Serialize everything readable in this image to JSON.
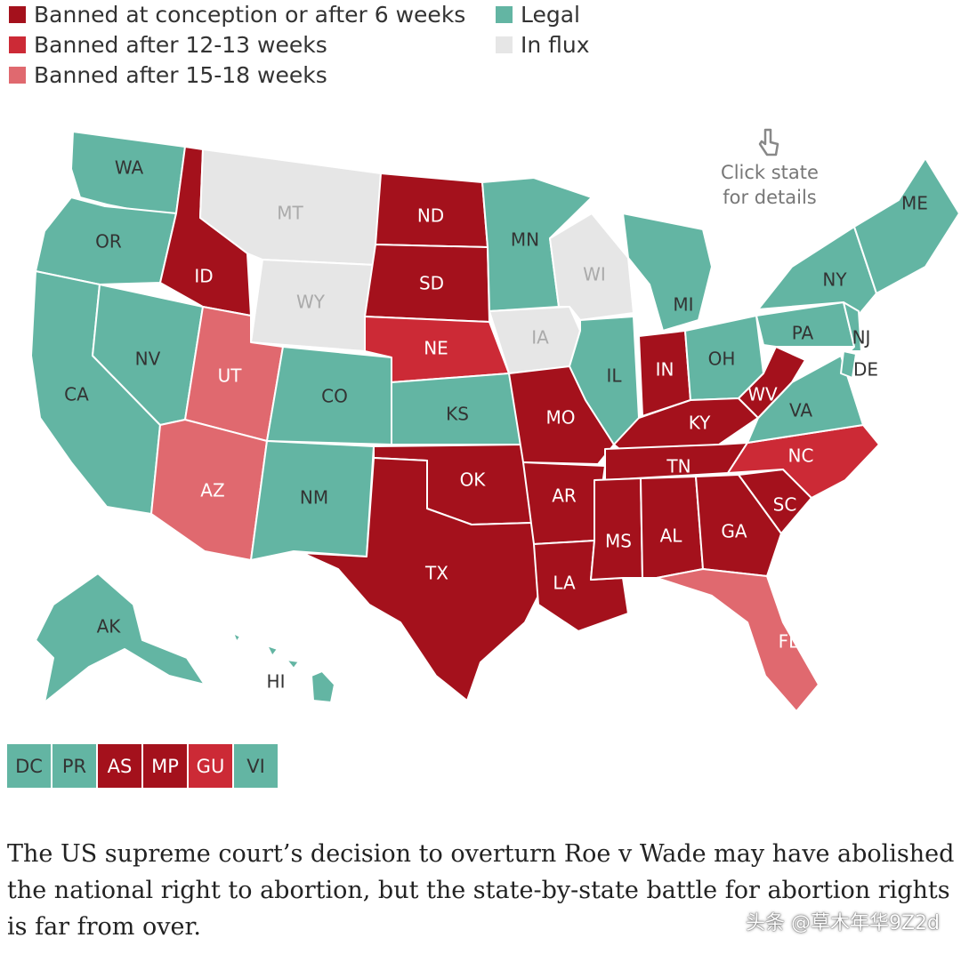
{
  "legend": [
    {
      "label": "Banned at conception or after 6 weeks",
      "color": "#a4111c"
    },
    {
      "label": "Banned after 12-13 weeks",
      "color": "#cc2a36"
    },
    {
      "label": "Banned after 15-18 weeks",
      "color": "#e0696f"
    },
    {
      "label": "Legal",
      "color": "#63b5a3"
    },
    {
      "label": "In flux",
      "color": "#e6e6e6"
    }
  ],
  "hint": {
    "line1": "Click state",
    "line2": "for details",
    "icon": "pointer-hand-icon"
  },
  "states": [
    {
      "code": "WA",
      "status": "legal"
    },
    {
      "code": "OR",
      "status": "legal"
    },
    {
      "code": "CA",
      "status": "legal"
    },
    {
      "code": "NV",
      "status": "legal"
    },
    {
      "code": "ID",
      "status": "banned6"
    },
    {
      "code": "MT",
      "status": "flux"
    },
    {
      "code": "WY",
      "status": "flux"
    },
    {
      "code": "UT",
      "status": "banned15"
    },
    {
      "code": "AZ",
      "status": "banned15"
    },
    {
      "code": "CO",
      "status": "legal"
    },
    {
      "code": "NM",
      "status": "legal"
    },
    {
      "code": "ND",
      "status": "banned6"
    },
    {
      "code": "SD",
      "status": "banned6"
    },
    {
      "code": "NE",
      "status": "banned12"
    },
    {
      "code": "KS",
      "status": "legal"
    },
    {
      "code": "OK",
      "status": "banned6"
    },
    {
      "code": "TX",
      "status": "banned6"
    },
    {
      "code": "MN",
      "status": "legal"
    },
    {
      "code": "IA",
      "status": "flux"
    },
    {
      "code": "MO",
      "status": "banned6"
    },
    {
      "code": "AR",
      "status": "banned6"
    },
    {
      "code": "LA",
      "status": "banned6"
    },
    {
      "code": "WI",
      "status": "flux"
    },
    {
      "code": "IL",
      "status": "legal"
    },
    {
      "code": "MI",
      "status": "legal"
    },
    {
      "code": "IN",
      "status": "banned6"
    },
    {
      "code": "OH",
      "status": "legal"
    },
    {
      "code": "KY",
      "status": "banned6"
    },
    {
      "code": "TN",
      "status": "banned6"
    },
    {
      "code": "MS",
      "status": "banned6"
    },
    {
      "code": "AL",
      "status": "banned6"
    },
    {
      "code": "GA",
      "status": "banned6"
    },
    {
      "code": "FL",
      "status": "banned15"
    },
    {
      "code": "SC",
      "status": "banned6"
    },
    {
      "code": "NC",
      "status": "banned12"
    },
    {
      "code": "VA",
      "status": "legal"
    },
    {
      "code": "WV",
      "status": "banned6"
    },
    {
      "code": "PA",
      "status": "legal"
    },
    {
      "code": "NY",
      "status": "legal"
    },
    {
      "code": "NJ",
      "status": "legal"
    },
    {
      "code": "DE",
      "status": "legal"
    },
    {
      "code": "ME",
      "status": "legal"
    },
    {
      "code": "AK",
      "status": "legal"
    },
    {
      "code": "HI",
      "status": "legal"
    }
  ],
  "territories": [
    {
      "code": "DC",
      "status": "legal"
    },
    {
      "code": "PR",
      "status": "legal"
    },
    {
      "code": "AS",
      "status": "banned6"
    },
    {
      "code": "MP",
      "status": "banned6"
    },
    {
      "code": "GU",
      "status": "banned12"
    },
    {
      "code": "VI",
      "status": "legal"
    }
  ],
  "status_colors": {
    "banned6": "#a4111c",
    "banned12": "#cc2a36",
    "banned15": "#e0696f",
    "legal": "#63b5a3",
    "flux": "#e6e6e6"
  },
  "caption": "The US supreme court’s decision to overturn Roe v Wade may have abolished the national right to abortion, but the state-by-state battle for abortion rights is far from over.",
  "watermark": "头条 @草木年华9Z2d"
}
